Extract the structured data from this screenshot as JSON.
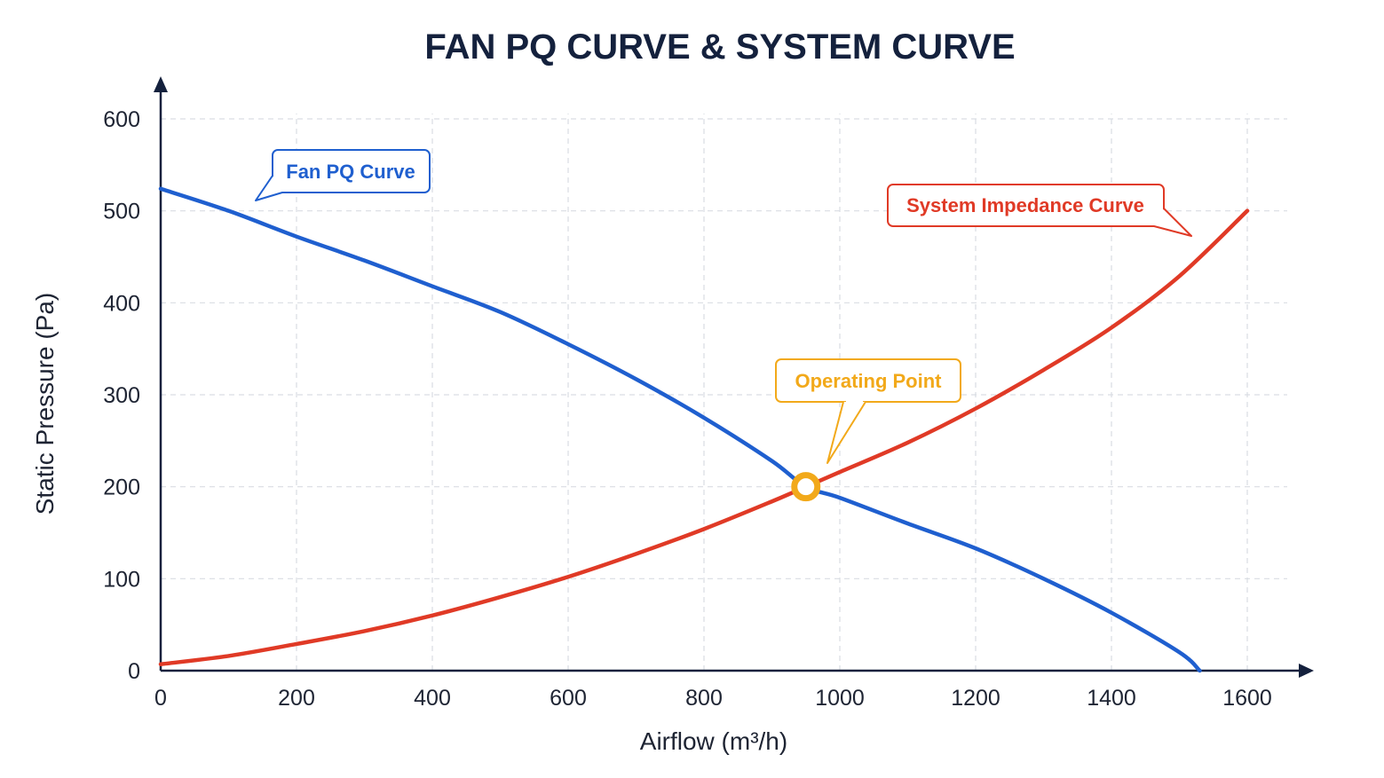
{
  "chart_data": {
    "type": "line",
    "title": "FAN PQ CURVE & SYSTEM CURVE",
    "xlabel": "Airflow (m³/h)",
    "ylabel": "Static Pressure (Pa)",
    "xlim": [
      0,
      1650
    ],
    "ylim": [
      0,
      600
    ],
    "x_ticks": [
      0,
      200,
      400,
      600,
      800,
      1000,
      1200,
      1400,
      1600
    ],
    "y_ticks": [
      0,
      100,
      200,
      300,
      400,
      500,
      600
    ],
    "x_tick_labels": [
      "0",
      "200",
      "400",
      "600",
      "800",
      "1000",
      "1200",
      "1400",
      "1600"
    ],
    "y_tick_labels": [
      "0",
      "100",
      "200",
      "300",
      "400",
      "500",
      "600"
    ],
    "grid": true,
    "series": [
      {
        "name": "Fan PQ Curve",
        "color": "#1f5fcf",
        "x": [
          0,
          100,
          200,
          300,
          400,
          500,
          600,
          700,
          800,
          900,
          950,
          1000,
          1100,
          1200,
          1300,
          1400,
          1500,
          1530
        ],
        "y": [
          524,
          500,
          472,
          446,
          418,
          390,
          355,
          317,
          275,
          228,
          200,
          188,
          160,
          133,
          100,
          63,
          20,
          0
        ]
      },
      {
        "name": "System Impedance Curve",
        "color": "#e03a26",
        "x": [
          0,
          100,
          200,
          300,
          400,
          500,
          600,
          700,
          800,
          900,
          950,
          1000,
          1100,
          1200,
          1300,
          1400,
          1500,
          1600
        ],
        "y": [
          7,
          16,
          29,
          43,
          60,
          80,
          102,
          127,
          154,
          184,
          200,
          216,
          248,
          285,
          327,
          373,
          429,
          500
        ]
      }
    ],
    "operating_point": {
      "x": 950,
      "y": 200,
      "label": "Operating Point",
      "color": "#f2a91a"
    },
    "callouts": {
      "fan": {
        "text": "Fan PQ Curve",
        "color": "#1f5fcf"
      },
      "system": {
        "text": "System Impedance Curve",
        "color": "#e03a26"
      },
      "operating": {
        "text": "Operating Point",
        "color": "#f2a91a"
      }
    }
  }
}
